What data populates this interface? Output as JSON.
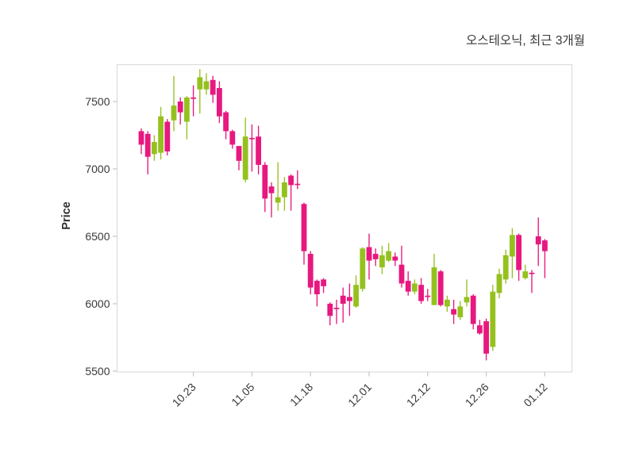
{
  "header": {
    "title": "오스테오닉, 최근 3개월"
  },
  "chart_data": {
    "type": "candlestick",
    "title": "오스테오닉, 최근 3개월",
    "ylabel": "Price",
    "yticks": [
      5500,
      6000,
      6500,
      7000,
      7500
    ],
    "ylim": [
      5460,
      7775
    ],
    "xtick_labels": [
      "10.23",
      "11.05",
      "11.18",
      "12.01",
      "12.12",
      "12.26",
      "01.12"
    ],
    "xtick_candle_indices": [
      8,
      17,
      26,
      35,
      44,
      53,
      62
    ],
    "grid": true,
    "legend": "none",
    "ohlc_order": [
      "open",
      "high",
      "low",
      "close"
    ],
    "colors": {
      "up": "#95c11f",
      "down": "#e7187f",
      "text": "#3a3a3a",
      "grid": "#d9d9d9",
      "frame": "#dcdcdc",
      "background": "#ffffff"
    },
    "candles": [
      [
        7280,
        7300,
        7110,
        7180
      ],
      [
        7260,
        7280,
        6960,
        7090
      ],
      [
        7110,
        7250,
        7060,
        7200
      ],
      [
        7120,
        7460,
        7070,
        7390
      ],
      [
        7350,
        7370,
        7100,
        7130
      ],
      [
        7360,
        7690,
        7280,
        7470
      ],
      [
        7500,
        7530,
        7330,
        7420
      ],
      [
        7350,
        7540,
        7220,
        7530
      ],
      [
        7530,
        7620,
        7390,
        7520
      ],
      [
        7590,
        7740,
        7410,
        7680
      ],
      [
        7590,
        7710,
        7550,
        7650
      ],
      [
        7660,
        7690,
        7490,
        7550
      ],
      [
        7600,
        7650,
        7340,
        7390
      ],
      [
        7420,
        7430,
        7220,
        7280
      ],
      [
        7280,
        7290,
        7150,
        7180
      ],
      [
        7170,
        7170,
        6990,
        7060
      ],
      [
        6920,
        7380,
        6900,
        7240
      ],
      [
        7230,
        7330,
        6980,
        7220
      ],
      [
        7240,
        7320,
        6960,
        7030
      ],
      [
        7030,
        7050,
        6680,
        6780
      ],
      [
        6870,
        6900,
        6640,
        6820
      ],
      [
        6750,
        7050,
        6690,
        6790
      ],
      [
        6790,
        6940,
        6690,
        6900
      ],
      [
        6950,
        6960,
        6690,
        6880
      ],
      [
        6890,
        6990,
        6850,
        6880
      ],
      [
        6740,
        6750,
        6290,
        6390
      ],
      [
        6370,
        6390,
        6070,
        6120
      ],
      [
        6170,
        6180,
        5980,
        6070
      ],
      [
        6180,
        6190,
        6080,
        6130
      ],
      [
        6000,
        6010,
        5840,
        5910
      ],
      [
        5970,
        6030,
        5850,
        5960
      ],
      [
        6060,
        6120,
        5860,
        6000
      ],
      [
        6050,
        6150,
        5910,
        6020
      ],
      [
        5980,
        6210,
        5970,
        6140
      ],
      [
        6110,
        6420,
        6090,
        6410
      ],
      [
        6420,
        6520,
        6180,
        6320
      ],
      [
        6370,
        6410,
        6280,
        6330
      ],
      [
        6270,
        6430,
        6220,
        6360
      ],
      [
        6320,
        6450,
        6310,
        6390
      ],
      [
        6350,
        6380,
        6280,
        6320
      ],
      [
        6290,
        6430,
        6120,
        6150
      ],
      [
        6170,
        6240,
        6060,
        6090
      ],
      [
        6090,
        6180,
        6070,
        6150
      ],
      [
        6140,
        6190,
        6000,
        6020
      ],
      [
        6060,
        6110,
        6020,
        6050
      ],
      [
        5990,
        6370,
        5990,
        6270
      ],
      [
        6240,
        6250,
        5980,
        5990
      ],
      [
        5980,
        6060,
        5940,
        6030
      ],
      [
        5960,
        6030,
        5850,
        5920
      ],
      [
        5900,
        6020,
        5880,
        5980
      ],
      [
        6010,
        6180,
        5980,
        6050
      ],
      [
        6060,
        6070,
        5810,
        5850
      ],
      [
        5840,
        5880,
        5770,
        5780
      ],
      [
        5870,
        5890,
        5580,
        5630
      ],
      [
        5680,
        6140,
        5650,
        6090
      ],
      [
        6080,
        6260,
        6040,
        6220
      ],
      [
        6180,
        6400,
        6150,
        6360
      ],
      [
        6350,
        6560,
        6190,
        6510
      ],
      [
        6510,
        6520,
        6170,
        6250
      ],
      [
        6190,
        6290,
        6180,
        6240
      ],
      [
        6230,
        6250,
        6080,
        6220
      ],
      [
        6500,
        6640,
        6280,
        6440
      ],
      [
        6470,
        6480,
        6190,
        6390
      ]
    ]
  }
}
